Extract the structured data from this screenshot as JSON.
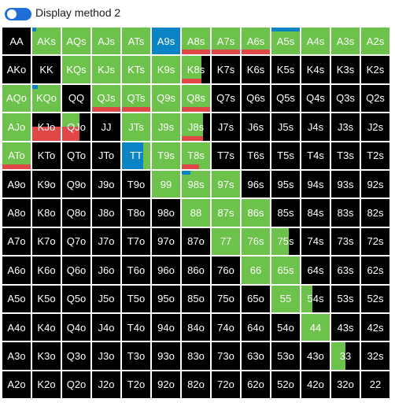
{
  "header": {
    "label": "Display method 2",
    "toggle_on": true
  },
  "colors": {
    "green": "#6cc24a",
    "blue": "#0b84c6",
    "red": "#e04747",
    "black": "#000000"
  },
  "grid": [
    [
      "AA",
      "AKs",
      "AQs",
      "AJs",
      "ATs",
      "A9s",
      "A8s",
      "A7s",
      "A6s",
      "A5s",
      "A4s",
      "A3s",
      "A2s"
    ],
    [
      "AKo",
      "KK",
      "KQs",
      "KJs",
      "KTs",
      "K9s",
      "K8s",
      "K7s",
      "K6s",
      "K5s",
      "K4s",
      "K3s",
      "K2s"
    ],
    [
      "AQo",
      "KQo",
      "QQ",
      "QJs",
      "QTs",
      "Q9s",
      "Q8s",
      "Q7s",
      "Q6s",
      "Q5s",
      "Q4s",
      "Q3s",
      "Q2s"
    ],
    [
      "AJo",
      "KJo",
      "QJo",
      "JJ",
      "JTs",
      "J9s",
      "J8s",
      "J7s",
      "J6s",
      "J5s",
      "J4s",
      "J3s",
      "J2s"
    ],
    [
      "ATo",
      "KTo",
      "QTo",
      "JTo",
      "TT",
      "T9s",
      "T8s",
      "T7s",
      "T6s",
      "T5s",
      "T4s",
      "T3s",
      "T2s"
    ],
    [
      "A9o",
      "K9o",
      "Q9o",
      "J9o",
      "T9o",
      "99",
      "98s",
      "97s",
      "96s",
      "95s",
      "94s",
      "93s",
      "92s"
    ],
    [
      "A8o",
      "K8o",
      "Q8o",
      "J8o",
      "T8o",
      "98o",
      "88",
      "87s",
      "86s",
      "85s",
      "84s",
      "83s",
      "82s"
    ],
    [
      "A7o",
      "K7o",
      "Q7o",
      "J7o",
      "T7o",
      "97o",
      "87o",
      "77",
      "76s",
      "75s",
      "74s",
      "73s",
      "72s"
    ],
    [
      "A6o",
      "K6o",
      "Q6o",
      "J6o",
      "T6o",
      "96o",
      "86o",
      "76o",
      "66",
      "65s",
      "64s",
      "63s",
      "62s"
    ],
    [
      "A5o",
      "K5o",
      "Q5o",
      "J5o",
      "T5o",
      "95o",
      "85o",
      "75o",
      "65o",
      "55",
      "54s",
      "53s",
      "52s"
    ],
    [
      "A4o",
      "K4o",
      "Q4o",
      "J4o",
      "T4o",
      "94o",
      "84o",
      "74o",
      "64o",
      "54o",
      "44",
      "43s",
      "42s"
    ],
    [
      "A3o",
      "K3o",
      "Q3o",
      "J3o",
      "T3o",
      "93o",
      "83o",
      "73o",
      "63o",
      "53o",
      "43o",
      "33",
      "32s"
    ],
    [
      "A2o",
      "K2o",
      "Q2o",
      "J2o",
      "T2o",
      "92o",
      "82o",
      "72o",
      "62o",
      "52o",
      "42o",
      "32o",
      "22"
    ]
  ],
  "cell_style": {
    "AKs": {
      "green": 1,
      "blue": 0.15
    },
    "AQs": {
      "green": 1
    },
    "AJs": {
      "green": 1
    },
    "ATs": {
      "green": 1
    },
    "A9s": {
      "blue_full": 1
    },
    "A8s": {
      "green": 1,
      "red": 1
    },
    "A7s": {
      "green": 1,
      "red": 1
    },
    "A6s": {
      "green": 1,
      "red": 1
    },
    "A5s": {
      "green": 1,
      "blue": 1
    },
    "A4s": {
      "green": 1
    },
    "A3s": {
      "green": 1
    },
    "A2s": {
      "green": 1
    },
    "KQs": {
      "green": 1
    },
    "KJs": {
      "green": 1
    },
    "KTs": {
      "green": 1
    },
    "K9s": {
      "green": 1
    },
    "K8s": {
      "green": 0.7,
      "red": 0.7
    },
    "AQo": {
      "green": 1
    },
    "KQo": {
      "green": 1,
      "blue": 0.2
    },
    "QJs": {
      "green": 1,
      "red": 1
    },
    "QTs": {
      "green": 1,
      "red": 1
    },
    "Q9s": {
      "green": 1
    },
    "Q8s": {
      "green": 1,
      "red": 1
    },
    "AJo": {
      "green": 1
    },
    "KJo": {
      "red_left": 1
    },
    "QJo": {
      "green": 0.6,
      "red_left": 0.6
    },
    "JTs": {
      "green": 1
    },
    "J9s": {
      "green": 1
    },
    "J8s": {
      "green": 0.75,
      "red": 0.75
    },
    "ATo": {
      "green": 1,
      "red": 1
    },
    "TT": {
      "green": 1,
      "blue_full": 0.75
    },
    "T9s": {
      "green": 1
    },
    "T8s": {
      "green": 1,
      "red": 0.6
    },
    "99": {
      "green": 1
    },
    "98s": {
      "green": 1,
      "blue": 0.3
    },
    "97s": {
      "green": 1
    },
    "88": {
      "green": 1
    },
    "87s": {
      "green": 1
    },
    "86s": {
      "green": 1
    },
    "77": {
      "green": 1
    },
    "76s": {
      "green": 1
    },
    "75s": {
      "green": 0.6
    },
    "66": {
      "green": 1
    },
    "65s": {
      "green": 1
    },
    "55": {
      "green": 1
    },
    "54s": {
      "green": 0.4
    },
    "44": {
      "green": 1
    },
    "33": {
      "green": 0.5
    }
  }
}
